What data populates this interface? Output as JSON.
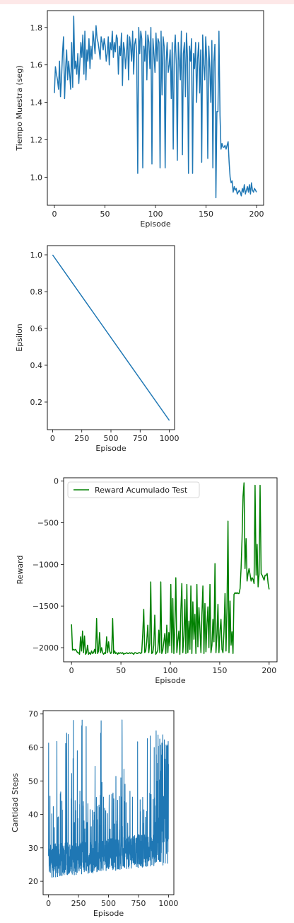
{
  "colors": {
    "top_strip": "#fde8e8",
    "blue": "#1f77b4",
    "green": "#008000",
    "axis": "#000000"
  },
  "chart_data": [
    {
      "type": "line",
      "xlabel": "Episode",
      "ylabel": "Tiempo Muestra (seg)",
      "xlim": [
        -7,
        207
      ],
      "ylim": [
        0.85,
        1.89
      ],
      "xticks": [
        0,
        50,
        100,
        150,
        200
      ],
      "yticks": [
        1.0,
        1.2,
        1.4,
        1.6,
        1.8
      ],
      "ytick_labels": [
        "1.0",
        "1.2",
        "1.4",
        "1.6",
        "1.8"
      ],
      "series": [
        {
          "color": "#1f77b4",
          "y": [
            1.45,
            1.59,
            1.55,
            1.52,
            1.47,
            1.62,
            1.43,
            1.53,
            1.67,
            1.75,
            1.42,
            1.58,
            1.68,
            1.52,
            1.62,
            1.55,
            1.47,
            1.72,
            1.48,
            1.86,
            1.58,
            1.62,
            1.55,
            1.66,
            1.5,
            1.6,
            1.72,
            1.64,
            1.76,
            1.55,
            1.78,
            1.52,
            1.68,
            1.62,
            1.74,
            1.58,
            1.7,
            1.63,
            1.78,
            1.72,
            1.66,
            1.81,
            1.74,
            1.72,
            1.68,
            1.63,
            1.75,
            1.72,
            1.68,
            1.74,
            1.7,
            1.62,
            1.66,
            1.75,
            1.6,
            1.72,
            1.68,
            1.78,
            1.64,
            1.72,
            1.67,
            1.76,
            1.74,
            1.55,
            1.7,
            1.65,
            1.77,
            1.49,
            1.72,
            1.68,
            1.58,
            1.66,
            1.76,
            1.52,
            1.75,
            1.7,
            1.62,
            1.78,
            1.55,
            1.71,
            1.74,
            1.66,
            1.02,
            1.8,
            1.66,
            1.78,
            1.74,
            1.05,
            1.7,
            1.62,
            1.78,
            1.52,
            1.76,
            1.72,
            1.58,
            1.8,
            1.07,
            1.74,
            1.66,
            1.56,
            1.77,
            1.62,
            1.74,
            1.72,
            1.05,
            1.78,
            1.44,
            1.75,
            1.7,
            1.05,
            1.62,
            1.72,
            1.56,
            1.6,
            1.68,
            1.42,
            1.72,
            1.15,
            1.66,
            1.76,
            1.6,
            1.09,
            1.72,
            1.62,
            1.52,
            1.78,
            1.12,
            1.66,
            1.72,
            1.43,
            1.77,
            1.64,
            1.02,
            1.7,
            1.62,
            1.74,
            1.02,
            1.66,
            1.58,
            1.72,
            1.4,
            1.63,
            1.72,
            1.45,
            1.68,
            1.08,
            1.76,
            1.6,
            1.52,
            1.75,
            1.62,
            1.1,
            1.7,
            1.58,
            1.4,
            1.73,
            1.05,
            1.62,
            1.71,
            0.89,
            1.35,
            1.35,
            1.78,
            1.33,
            1.15,
            1.18,
            1.16,
            1.16,
            1.17,
            1.15,
            1.17,
            1.19,
            1.08,
            1.0,
            0.97,
            0.98,
            0.92,
            0.95,
            0.93,
            0.94,
            0.91,
            0.92,
            0.93,
            0.92,
            0.9,
            0.94,
            0.92,
            0.96,
            0.91,
            0.93,
            0.95,
            0.92,
            0.96,
            0.91,
            0.97,
            0.93,
            0.92,
            0.94,
            0.93,
            0.92
          ]
        }
      ]
    },
    {
      "type": "line",
      "xlabel": "Episode",
      "ylabel": "Epsilon",
      "xlim": [
        -45,
        1045
      ],
      "ylim": [
        0.05,
        1.05
      ],
      "xticks": [
        0,
        250,
        500,
        750,
        1000
      ],
      "yticks": [
        0.2,
        0.4,
        0.6,
        0.8,
        1.0
      ],
      "ytick_labels": [
        "0.2",
        "0.4",
        "0.6",
        "0.8",
        "1.0"
      ],
      "series": [
        {
          "color": "#1f77b4",
          "x": [
            0,
            1000
          ],
          "y": [
            1.0,
            0.1
          ]
        }
      ]
    },
    {
      "type": "line",
      "xlabel": "Episode",
      "ylabel": "Reward",
      "xlim": [
        -8,
        208
      ],
      "ylim": [
        -2170,
        40
      ],
      "xticks": [
        0,
        50,
        100,
        150,
        200
      ],
      "yticks": [
        -2000,
        -1500,
        -1000,
        -500,
        0
      ],
      "ytick_labels": [
        "−2000",
        "−1500",
        "−1000",
        "−500",
        "0"
      ],
      "legend": {
        "position": "top-left",
        "label": "Reward Acumulado Test"
      },
      "series": [
        {
          "name": "Reward Acumulado Test",
          "color": "#008000",
          "y": [
            -1720,
            -2030,
            -2020,
            -2030,
            -2020,
            -2040,
            -2060,
            -2060,
            -2080,
            -1870,
            -2040,
            -1800,
            -2060,
            -1860,
            -2080,
            -2060,
            -1970,
            -2080,
            -2060,
            -2080,
            -2040,
            -2070,
            -2060,
            -2020,
            -2070,
            -1650,
            -2070,
            -2040,
            -1820,
            -2060,
            -2000,
            -2060,
            -2080,
            -2060,
            -2070,
            -1870,
            -2060,
            -1930,
            -2040,
            -2070,
            -2060,
            -1650,
            -2070,
            -2040,
            -2070,
            -2060,
            -2080,
            -2060,
            -2070,
            -2060,
            -2070,
            -2060,
            -2080,
            -2070,
            -2070,
            -2060,
            -2070,
            -2070,
            -2060,
            -2070,
            -2060,
            -2070,
            -2080,
            -2060,
            -2060,
            -2070,
            -2070,
            -2060,
            -2060,
            -2070,
            -2060,
            -1830,
            -1540,
            -2060,
            -2040,
            -1930,
            -1730,
            -2060,
            -1950,
            -1210,
            -2070,
            -2060,
            -1970,
            -1610,
            -2080,
            -2060,
            -2030,
            -1790,
            -2060,
            -1210,
            -2070,
            -2030,
            -1930,
            -1830,
            -2070,
            -1730,
            -2060,
            -1820,
            -1980,
            -1240,
            -2060,
            -1410,
            -2070,
            -1750,
            -1160,
            -2060,
            -1920,
            -1800,
            -2080,
            -1560,
            -1230,
            -2060,
            -1850,
            -1420,
            -2070,
            -1240,
            -2060,
            -1680,
            -2020,
            -1260,
            -2070,
            -1450,
            -1900,
            -1600,
            -2070,
            -1240,
            -1990,
            -1520,
            -1780,
            -2060,
            -1600,
            -1260,
            -2070,
            -1470,
            -2050,
            -1730,
            -1510,
            -2000,
            -1240,
            -2060,
            -1970,
            -1660,
            -1930,
            -990,
            -2060,
            -1840,
            -1480,
            -2060,
            -1790,
            -1660,
            -2020,
            -2060,
            -1810,
            -1350,
            -2040,
            -1520,
            -480,
            -2060,
            -1440,
            -1970,
            -1810,
            -2070,
            -1360,
            -1340,
            -1350,
            -1340,
            -1350,
            -1350,
            -1290,
            -1050,
            -690,
            -180,
            -20,
            -1050,
            -690,
            -1200,
            -1110,
            -1050,
            -1120,
            -1200,
            -1160,
            -1180,
            -1230,
            -50,
            -1130,
            -760,
            -1270,
            -1120,
            -50,
            -1110,
            -1130,
            -1160,
            -1190,
            -1130,
            -1130,
            -1110,
            -1230,
            -1300
          ]
        }
      ]
    },
    {
      "type": "line",
      "xlabel": "Episode",
      "ylabel": "Cantidad Steps",
      "xlim": [
        -45,
        1045
      ],
      "ylim": [
        16,
        71
      ],
      "xticks": [
        0,
        250,
        500,
        750,
        1000
      ],
      "yticks": [
        20,
        30,
        40,
        50,
        60,
        70
      ],
      "ytick_labels": [
        "20",
        "30",
        "40",
        "50",
        "60",
        "70"
      ],
      "series": [
        {
          "color": "#1f77b4",
          "generated_noise": true,
          "x_end": 1000
        }
      ]
    }
  ]
}
